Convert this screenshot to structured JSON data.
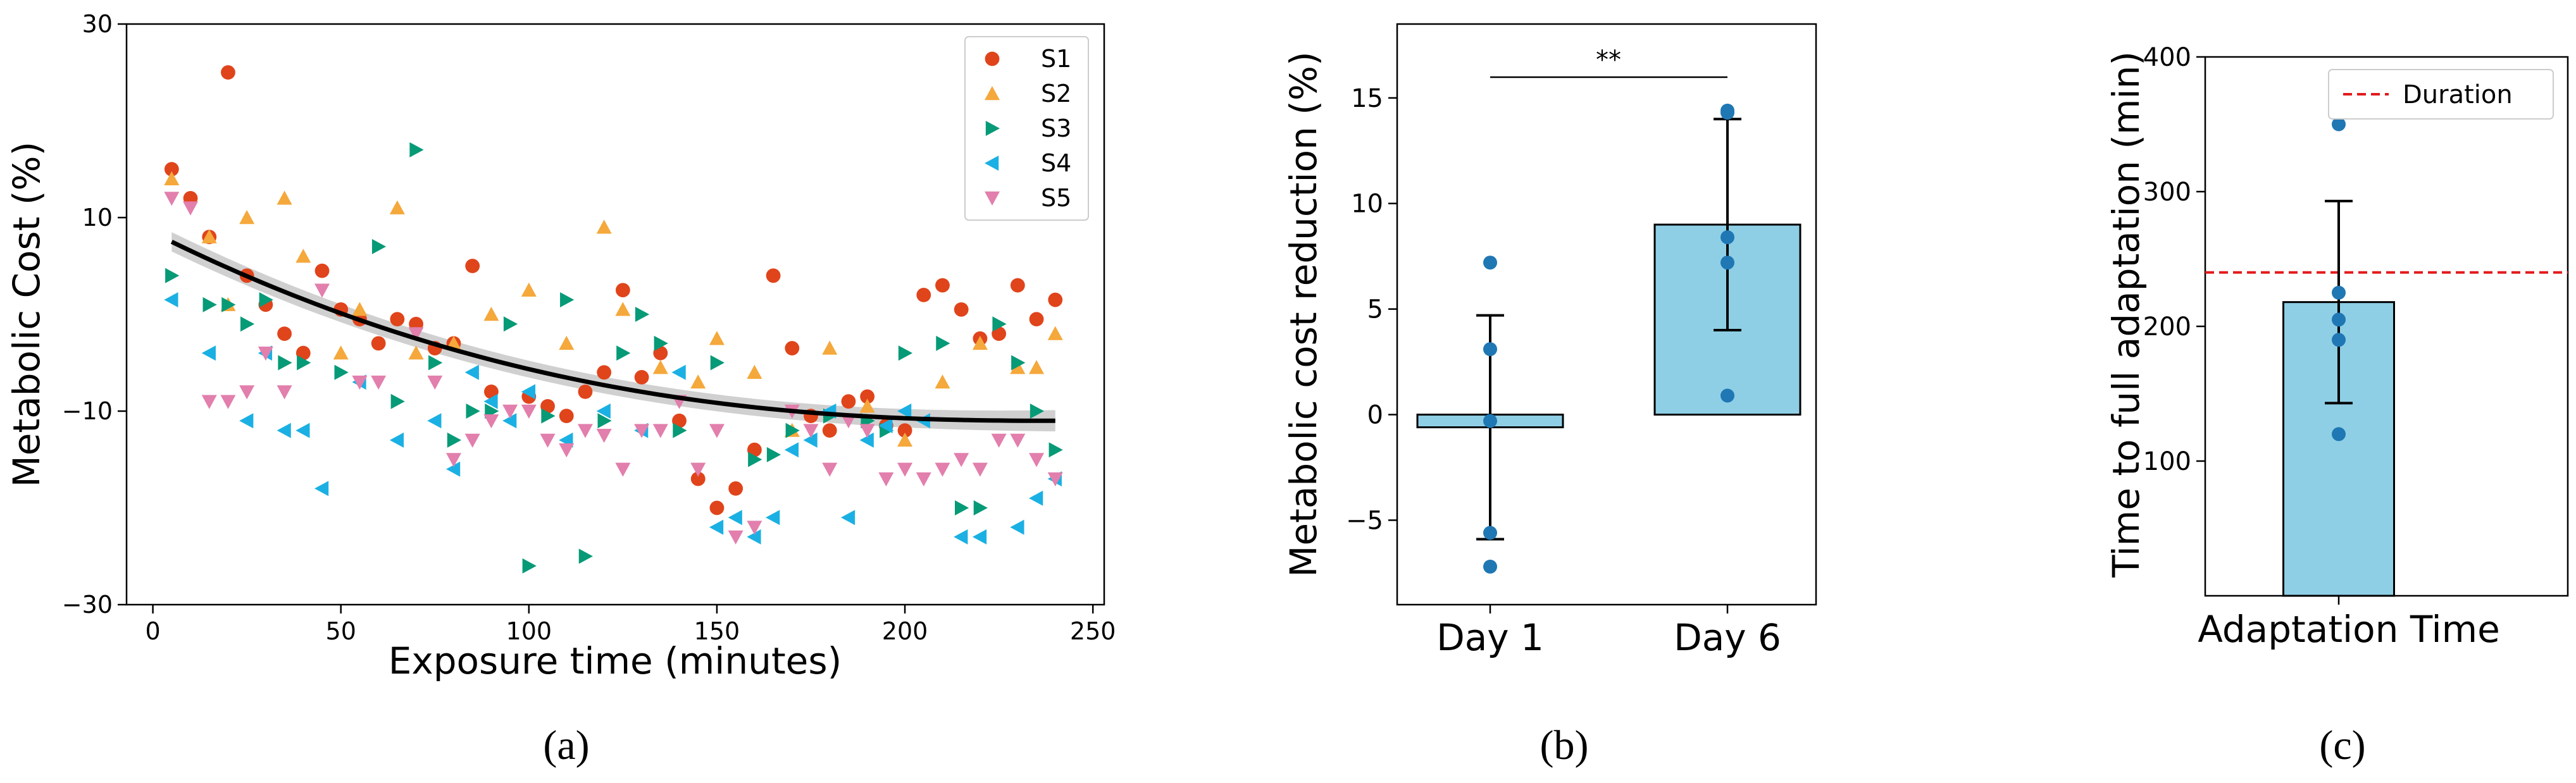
{
  "panels": [
    {
      "caption": "(a)"
    },
    {
      "caption": "(b)"
    },
    {
      "caption": "(c)"
    }
  ],
  "colors": {
    "S1": "#e0441b",
    "S2": "#f5a83b",
    "S3": "#079a77",
    "S4": "#1bb0e3",
    "S5": "#e27fac",
    "fit": "#000000",
    "band": "#c8c8c8",
    "bar": "#8ecfe6",
    "bar_edge": "#000000",
    "dot": "#1f77b4",
    "duration": "#e31a1c"
  },
  "chart_data": [
    {
      "type": "scatter",
      "xlabel": "Exposure time (minutes)",
      "ylabel": "Metabolic Cost (%)",
      "xlim": [
        -7,
        253
      ],
      "ylim": [
        -30,
        30
      ],
      "xticks": [
        "0",
        "50",
        "100",
        "150",
        "200",
        "250"
      ],
      "yticks": [
        "30",
        "10",
        "−10",
        "−30"
      ],
      "legend_placement": "top-right",
      "series": [
        {
          "name": "S1",
          "marker": "circle",
          "points": [
            [
              5,
              15
            ],
            [
              10,
              12
            ],
            [
              15,
              8
            ],
            [
              20,
              25
            ],
            [
              25,
              4
            ],
            [
              30,
              1
            ],
            [
              35,
              -2
            ],
            [
              40,
              -4
            ],
            [
              45,
              4.5
            ],
            [
              50,
              0.5
            ],
            [
              55,
              -0.5
            ],
            [
              60,
              -3
            ],
            [
              65,
              -0.5
            ],
            [
              70,
              -1
            ],
            [
              75,
              -3.5
            ],
            [
              80,
              -3
            ],
            [
              85,
              5
            ],
            [
              90,
              -8
            ],
            [
              100,
              -8.5
            ],
            [
              105,
              -9.5
            ],
            [
              110,
              -10.5
            ],
            [
              115,
              -8
            ],
            [
              120,
              -6
            ],
            [
              125,
              2.5
            ],
            [
              130,
              -6.5
            ],
            [
              135,
              -4
            ],
            [
              140,
              -11
            ],
            [
              145,
              -17
            ],
            [
              150,
              -20
            ],
            [
              155,
              -18
            ],
            [
              160,
              -14
            ],
            [
              165,
              4
            ],
            [
              170,
              -3.5
            ],
            [
              175,
              -10.5
            ],
            [
              180,
              -12
            ],
            [
              185,
              -9
            ],
            [
              190,
              -8.5
            ],
            [
              195,
              -11.5
            ],
            [
              200,
              -12
            ],
            [
              205,
              2
            ],
            [
              210,
              3
            ],
            [
              215,
              0.5
            ],
            [
              220,
              -2.5
            ],
            [
              225,
              -2
            ],
            [
              230,
              3
            ],
            [
              235,
              -0.5
            ],
            [
              240,
              1.5
            ]
          ]
        },
        {
          "name": "S2",
          "marker": "triangle-up",
          "points": [
            [
              5,
              14
            ],
            [
              15,
              8
            ],
            [
              20,
              1
            ],
            [
              25,
              10
            ],
            [
              35,
              12
            ],
            [
              40,
              6
            ],
            [
              50,
              -4
            ],
            [
              55,
              0.5
            ],
            [
              65,
              11
            ],
            [
              70,
              -4
            ],
            [
              80,
              -3
            ],
            [
              90,
              0
            ],
            [
              100,
              2.5
            ],
            [
              110,
              -3
            ],
            [
              120,
              9
            ],
            [
              125,
              0.5
            ],
            [
              135,
              -5.5
            ],
            [
              145,
              -7
            ],
            [
              150,
              -2.5
            ],
            [
              160,
              -6
            ],
            [
              170,
              -12
            ],
            [
              180,
              -3.5
            ],
            [
              190,
              -9.5
            ],
            [
              200,
              -13
            ],
            [
              210,
              -7
            ],
            [
              220,
              -3
            ],
            [
              230,
              -5.5
            ],
            [
              235,
              -5.5
            ],
            [
              240,
              -2
            ]
          ]
        },
        {
          "name": "S3",
          "marker": "triangle-right",
          "points": [
            [
              5,
              4
            ],
            [
              15,
              1
            ],
            [
              20,
              1
            ],
            [
              25,
              -1
            ],
            [
              30,
              1.5
            ],
            [
              35,
              -5
            ],
            [
              40,
              -5
            ],
            [
              50,
              -6
            ],
            [
              60,
              7
            ],
            [
              65,
              -9
            ],
            [
              70,
              17
            ],
            [
              75,
              -5
            ],
            [
              80,
              -13
            ],
            [
              85,
              -10
            ],
            [
              90,
              -10
            ],
            [
              95,
              -1
            ],
            [
              100,
              -26
            ],
            [
              105,
              -10.5
            ],
            [
              110,
              1.5
            ],
            [
              115,
              -25
            ],
            [
              120,
              -11
            ],
            [
              125,
              -4
            ],
            [
              130,
              0
            ],
            [
              135,
              -3
            ],
            [
              140,
              -12
            ],
            [
              150,
              -5
            ],
            [
              160,
              -15
            ],
            [
              165,
              -14.5
            ],
            [
              170,
              -12
            ],
            [
              180,
              -10.5
            ],
            [
              190,
              -11
            ],
            [
              195,
              -12
            ],
            [
              200,
              -4
            ],
            [
              210,
              -3
            ],
            [
              215,
              -20
            ],
            [
              220,
              -20
            ],
            [
              225,
              -1
            ],
            [
              230,
              -5
            ],
            [
              235,
              -10
            ],
            [
              240,
              -14
            ]
          ]
        },
        {
          "name": "S4",
          "marker": "triangle-left",
          "points": [
            [
              5,
              1.5
            ],
            [
              15,
              -4
            ],
            [
              25,
              -11
            ],
            [
              30,
              -4
            ],
            [
              35,
              -12
            ],
            [
              40,
              -12
            ],
            [
              45,
              -18
            ],
            [
              55,
              -7
            ],
            [
              65,
              -13
            ],
            [
              75,
              -11
            ],
            [
              80,
              -16
            ],
            [
              85,
              -6
            ],
            [
              90,
              -9
            ],
            [
              95,
              -11
            ],
            [
              100,
              -8
            ],
            [
              110,
              -13
            ],
            [
              120,
              -10
            ],
            [
              130,
              -12
            ],
            [
              140,
              -6
            ],
            [
              150,
              -22
            ],
            [
              155,
              -21
            ],
            [
              160,
              -23
            ],
            [
              165,
              -21
            ],
            [
              170,
              -14
            ],
            [
              175,
              -13
            ],
            [
              180,
              -10
            ],
            [
              185,
              -21
            ],
            [
              190,
              -13
            ],
            [
              195,
              -11.5
            ],
            [
              200,
              -10
            ],
            [
              205,
              -11
            ],
            [
              215,
              -23
            ],
            [
              220,
              -23
            ],
            [
              230,
              -22
            ],
            [
              235,
              -19
            ],
            [
              240,
              -17
            ]
          ]
        },
        {
          "name": "S5",
          "marker": "triangle-down",
          "points": [
            [
              5,
              12
            ],
            [
              10,
              11
            ],
            [
              15,
              -9
            ],
            [
              20,
              -9
            ],
            [
              25,
              -8
            ],
            [
              30,
              -4
            ],
            [
              35,
              -8
            ],
            [
              45,
              2.5
            ],
            [
              55,
              -7
            ],
            [
              60,
              -7
            ],
            [
              70,
              -2
            ],
            [
              75,
              -7
            ],
            [
              80,
              -15
            ],
            [
              85,
              -13
            ],
            [
              90,
              -11
            ],
            [
              95,
              -10
            ],
            [
              100,
              -10
            ],
            [
              105,
              -13
            ],
            [
              110,
              -14
            ],
            [
              115,
              -12
            ],
            [
              120,
              -12.5
            ],
            [
              125,
              -16
            ],
            [
              130,
              -12
            ],
            [
              135,
              -12
            ],
            [
              140,
              -9
            ],
            [
              145,
              -16
            ],
            [
              150,
              -12
            ],
            [
              155,
              -23
            ],
            [
              160,
              -22
            ],
            [
              170,
              -10
            ],
            [
              175,
              -12
            ],
            [
              180,
              -16
            ],
            [
              185,
              -11
            ],
            [
              190,
              -12
            ],
            [
              195,
              -17
            ],
            [
              200,
              -16
            ],
            [
              205,
              -17
            ],
            [
              210,
              -16
            ],
            [
              215,
              -15
            ],
            [
              220,
              -16
            ],
            [
              225,
              -13
            ],
            [
              230,
              -13
            ],
            [
              235,
              -15
            ],
            [
              240,
              -17
            ]
          ]
        }
      ],
      "fit_curve": {
        "x_start": 5,
        "x_end": 240,
        "y_start": 7.5,
        "y_end": -11,
        "band": 1
      }
    },
    {
      "type": "bar",
      "ylabel": "Metabolic cost reduction (%)",
      "categories": [
        "Day 1",
        "Day 6"
      ],
      "values": [
        -0.6,
        9.0
      ],
      "error": [
        5.3,
        5.0
      ],
      "points": [
        [
          7.2,
          3.1,
          -0.3,
          -5.6,
          -7.2
        ],
        [
          14.4,
          14.3,
          8.4,
          7.2,
          0.9
        ]
      ],
      "ylim": [
        -9,
        18.5
      ],
      "yticks": [
        "−5",
        "0",
        "5",
        "10",
        "15"
      ],
      "annotation": "**"
    },
    {
      "type": "bar",
      "ylabel": "Time to full adaptation (min)",
      "categories": [
        "Adaptation Time"
      ],
      "values": [
        218
      ],
      "error": [
        75
      ],
      "points": [
        [
          350,
          225,
          205,
          190,
          120
        ]
      ],
      "ylim": [
        0,
        400
      ],
      "yticks": [
        "100",
        "200",
        "300",
        "400"
      ],
      "reference_line": {
        "label": "Duration",
        "value": 240
      },
      "legend_placement": "top-right"
    }
  ]
}
